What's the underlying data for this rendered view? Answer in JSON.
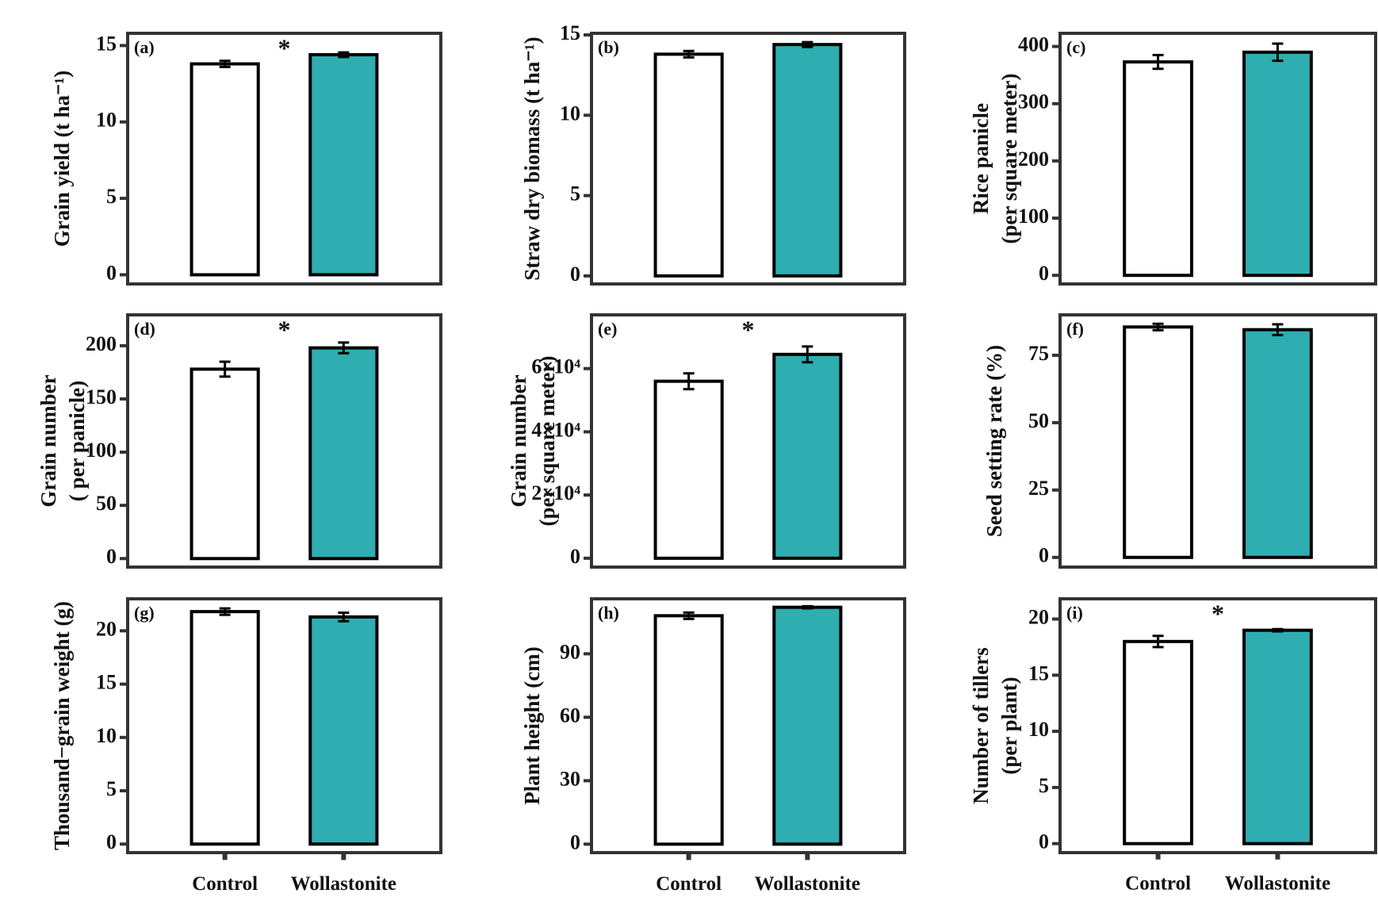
{
  "chart_data": [
    {
      "type": "bar",
      "panel": "(a)",
      "ylabel": [
        "Grain yield (t ha⁻¹)"
      ],
      "categories": [
        null,
        null
      ],
      "values": [
        13.8,
        14.4
      ],
      "errors": [
        0.2,
        0.15
      ],
      "colors": [
        "#ffffff",
        "#2eaeb0"
      ],
      "ylim": [
        -0.6,
        15.8
      ],
      "yticks": [
        0,
        5,
        10,
        15
      ],
      "annotation": "*"
    },
    {
      "type": "bar",
      "panel": "(b)",
      "ylabel": [
        "Straw dry biomass (t ha⁻¹)"
      ],
      "categories": [
        null,
        null
      ],
      "values": [
        13.8,
        14.4
      ],
      "errors": [
        0.2,
        0.15
      ],
      "colors": [
        "#ffffff",
        "#2eaeb0"
      ],
      "ylim": [
        -0.5,
        15.1
      ],
      "yticks": [
        0,
        5,
        10,
        15
      ]
    },
    {
      "type": "bar",
      "panel": "(c)",
      "ylabel": [
        "Rice panicle",
        "(per  square meter)"
      ],
      "categories": [
        null,
        null
      ],
      "values": [
        373,
        390
      ],
      "errors": [
        12,
        15
      ],
      "colors": [
        "#ffffff",
        "#2eaeb0"
      ],
      "ylim": [
        -15,
        423
      ],
      "yticks": [
        0,
        100,
        200,
        300,
        400
      ]
    },
    {
      "type": "bar",
      "panel": "(d)",
      "ylabel": [
        "Grain number",
        "( per panicle)"
      ],
      "categories": [
        null,
        null
      ],
      "values": [
        178,
        198
      ],
      "errors": [
        7,
        5
      ],
      "colors": [
        "#ffffff",
        "#2eaeb0"
      ],
      "ylim": [
        -8,
        229
      ],
      "yticks": [
        0,
        50,
        100,
        150,
        200
      ],
      "annotation": "*"
    },
    {
      "type": "bar",
      "panel": "(e)",
      "ylabel": [
        "Grain number",
        "(per  square meter)"
      ],
      "categories": [
        null,
        null
      ],
      "values": [
        56000,
        64500
      ],
      "errors": [
        2500,
        2500
      ],
      "colors": [
        "#ffffff",
        "#2eaeb0"
      ],
      "ylim": [
        -2800,
        77000
      ],
      "yticks": [
        0,
        {
          "value": 20000,
          "label": "2×10⁴"
        },
        {
          "value": 40000,
          "label": "4×10⁴"
        },
        {
          "value": 60000,
          "label": "6×10⁴"
        }
      ],
      "annotation": "*"
    },
    {
      "type": "bar",
      "panel": "(f)",
      "ylabel": [
        "Seed setting rate (%)"
      ],
      "categories": [
        null,
        null
      ],
      "values": [
        85.5,
        84.5
      ],
      "errors": [
        1.2,
        2
      ],
      "colors": [
        "#ffffff",
        "#2eaeb0"
      ],
      "ylim": [
        -3.6,
        90
      ],
      "yticks": [
        0,
        25,
        50,
        75
      ]
    },
    {
      "type": "bar",
      "panel": "(g)",
      "ylabel": [
        "Thousand−grain weight (g)"
      ],
      "categories": [
        "Control",
        "Wollastonite"
      ],
      "values": [
        21.8,
        21.3
      ],
      "errors": [
        0.3,
        0.4
      ],
      "colors": [
        "#ffffff",
        "#2eaeb0"
      ],
      "ylim": [
        -0.8,
        23
      ],
      "yticks": [
        0,
        5,
        10,
        15,
        20
      ]
    },
    {
      "type": "bar",
      "panel": "(h)",
      "ylabel": [
        "Plant height (cm)"
      ],
      "categories": [
        "Control",
        "Wollastonite"
      ],
      "values": [
        108,
        112
      ],
      "errors": [
        1.5,
        0.5
      ],
      "colors": [
        "#ffffff",
        "#2eaeb0"
      ],
      "ylim": [
        -4,
        116
      ],
      "yticks": [
        0,
        30,
        60,
        90
      ]
    },
    {
      "type": "bar",
      "panel": "(i)",
      "ylabel": [
        "Number of tillers",
        "(per plant)"
      ],
      "categories": [
        "Control",
        "Wollastonite"
      ],
      "values": [
        18,
        19
      ],
      "errors": [
        0.5,
        0.1
      ],
      "colors": [
        "#ffffff",
        "#2eaeb0"
      ],
      "ylim": [
        -0.8,
        21.8
      ],
      "yticks": [
        0,
        5,
        10,
        15,
        20
      ],
      "annotation": "*"
    }
  ]
}
